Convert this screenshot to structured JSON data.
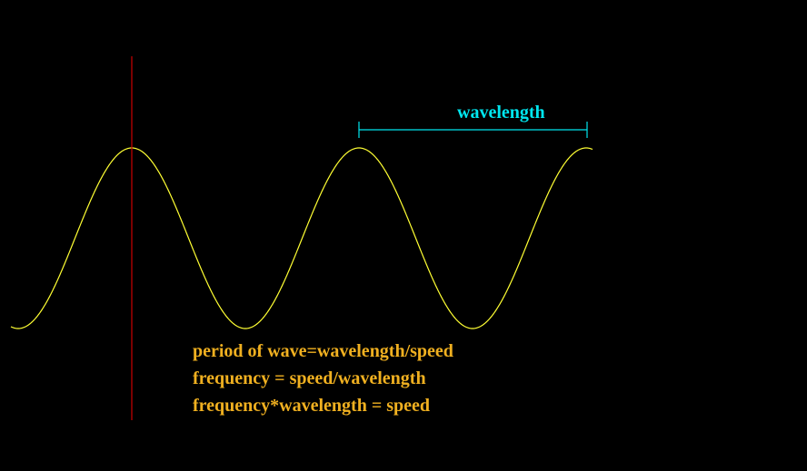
{
  "diagram": {
    "wavelength_label": "wavelength",
    "formulas": [
      "period of wave=wavelength/speed",
      "frequency = speed/wavelength",
      "frequency*wavelength = speed"
    ],
    "colors": {
      "background": "#000000",
      "wave": "#ffff33",
      "marker_line": "#cc0000",
      "wavelength_bracket": "#00e5ee",
      "formula_text": "#f0b020"
    }
  }
}
